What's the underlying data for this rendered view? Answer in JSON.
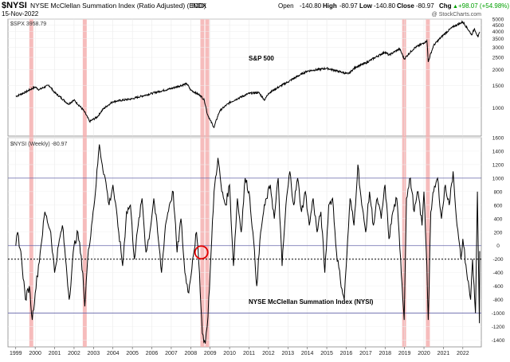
{
  "header": {
    "symbol": "$NYSI",
    "title": "NYSE McClellan Summation Index (Ratio Adjusted) (EOD)",
    "exchange": "INDX",
    "date": "15-Nov-2022",
    "ohlc": [
      {
        "label": "Open",
        "value": "-140.80"
      },
      {
        "label": "High",
        "value": "-80.97"
      },
      {
        "label": "Low",
        "value": "-140.80"
      },
      {
        "label": "Close",
        "value": "-80.97"
      },
      {
        "label": "Chg",
        "value": "+98.07 (+54.98%)"
      }
    ],
    "chg_arrow": "▲",
    "watermark": "@ StockCharts.com"
  },
  "colors": {
    "accent_up": "#00a000",
    "highlight_band": "#f4b0b0",
    "circle": "#e00000",
    "ref_line": "#6666aa",
    "grid": "#bbbbbb"
  },
  "chart_data": [
    {
      "type": "line",
      "legend_label": "$SPX 3958.79",
      "panel_label": "S&P 500",
      "scale": "log",
      "ylim": [
        600,
        5000
      ],
      "yticks": [
        1000,
        1500,
        2000,
        2500,
        3000,
        3500,
        4000,
        4500,
        5000
      ],
      "series": [
        {
          "x": [
            1999.0,
            1999.5,
            2000.0,
            2000.2,
            2000.7,
            2001.0,
            2001.7,
            2002.0,
            2002.5,
            2002.8,
            2003.2,
            2003.5,
            2004.0,
            2005.0,
            2006.0,
            2007.0,
            2007.8,
            2008.0,
            2008.5,
            2008.7,
            2008.85,
            2009.0,
            2009.2,
            2009.5,
            2010.0,
            2011.0,
            2011.5,
            2011.8,
            2012.0,
            2013.0,
            2014.0,
            2015.0,
            2015.6,
            2016.1,
            2016.5,
            2017.0,
            2018.0,
            2018.2,
            2018.75,
            2018.98,
            2019.5,
            2020.0,
            2020.15,
            2020.22,
            2020.5,
            2021.0,
            2021.5,
            2022.0,
            2022.45,
            2022.6,
            2022.78,
            2022.87
          ],
          "values": [
            1230,
            1330,
            1460,
            1390,
            1510,
            1320,
            1070,
            1150,
            950,
            780,
            850,
            980,
            1120,
            1180,
            1300,
            1420,
            1550,
            1380,
            1250,
            1150,
            900,
            800,
            700,
            950,
            1100,
            1300,
            1320,
            1150,
            1300,
            1600,
            1950,
            2050,
            1940,
            1850,
            2100,
            2250,
            2750,
            2600,
            2920,
            2420,
            2950,
            3250,
            3390,
            2300,
            3100,
            3750,
            4350,
            4750,
            3750,
            4200,
            3600,
            3958.79
          ]
        }
      ]
    },
    {
      "type": "line",
      "legend_label": "$NYSI (Weekly) -80.97",
      "panel_label": "NYSE McClellan Summation Index (NYSI)",
      "ylim": [
        -1500,
        1600
      ],
      "yticks": [
        -1400,
        -1200,
        -1000,
        -800,
        -600,
        -400,
        -200,
        0,
        200,
        400,
        600,
        800,
        1000,
        1200,
        1400,
        1600
      ],
      "reference_lines": [
        1000,
        0,
        -1000
      ],
      "dotted_line": -200,
      "highlight_x": [
        1999.8,
        2002.55,
        2008.6,
        2008.85,
        2018.98,
        2020.2
      ],
      "circle_x": 2008.55,
      "circle_y": -100,
      "series": [
        {
          "x": [
            1999.0,
            1999.1,
            1999.3,
            1999.5,
            1999.7,
            1999.85,
            2000.0,
            2000.3,
            2000.5,
            2000.8,
            2001.0,
            2001.2,
            2001.4,
            2001.6,
            2001.75,
            2002.0,
            2002.2,
            2002.45,
            2002.55,
            2002.7,
            2002.9,
            2003.1,
            2003.3,
            2003.45,
            2003.6,
            2003.8,
            2004.0,
            2004.3,
            2004.5,
            2004.7,
            2004.9,
            2005.1,
            2005.3,
            2005.5,
            2005.7,
            2005.9,
            2006.1,
            2006.3,
            2006.5,
            2006.7,
            2006.9,
            2007.1,
            2007.3,
            2007.5,
            2007.7,
            2007.9,
            2008.1,
            2008.3,
            2008.45,
            2008.6,
            2008.75,
            2008.85,
            2009.0,
            2009.2,
            2009.4,
            2009.6,
            2009.8,
            2010.0,
            2010.2,
            2010.4,
            2010.6,
            2010.8,
            2011.0,
            2011.2,
            2011.4,
            2011.6,
            2011.75,
            2011.9,
            2012.1,
            2012.3,
            2012.5,
            2012.7,
            2012.9,
            2013.1,
            2013.3,
            2013.5,
            2013.7,
            2013.9,
            2014.1,
            2014.3,
            2014.5,
            2014.7,
            2014.9,
            2015.1,
            2015.3,
            2015.5,
            2015.7,
            2015.9,
            2016.0,
            2016.2,
            2016.4,
            2016.6,
            2016.8,
            2017.0,
            2017.2,
            2017.4,
            2017.6,
            2017.8,
            2018.0,
            2018.2,
            2018.4,
            2018.6,
            2018.8,
            2018.98,
            2019.1,
            2019.3,
            2019.5,
            2019.7,
            2019.9,
            2020.0,
            2020.15,
            2020.22,
            2020.35,
            2020.5,
            2020.7,
            2020.9,
            2021.1,
            2021.3,
            2021.5,
            2021.7,
            2021.9,
            2022.0,
            2022.2,
            2022.4,
            2022.5,
            2022.65,
            2022.75,
            2022.85,
            2022.87
          ],
          "values": [
            0,
            200,
            -200,
            -800,
            -600,
            -1100,
            -700,
            0,
            500,
            200,
            -400,
            0,
            300,
            -300,
            -800,
            0,
            200,
            -400,
            -900,
            -200,
            300,
            800,
            1500,
            1200,
            1000,
            600,
            900,
            200,
            -300,
            500,
            600,
            -200,
            300,
            700,
            -100,
            200,
            700,
            200,
            -400,
            300,
            600,
            800,
            -100,
            400,
            -400,
            -700,
            -200,
            200,
            -400,
            -1300,
            -1450,
            -1200,
            -400,
            800,
            1300,
            800,
            600,
            900,
            -300,
            700,
            200,
            1000,
            800,
            200,
            -600,
            200,
            500,
            700,
            900,
            400,
            1000,
            -300,
            600,
            1100,
            600,
            1000,
            500,
            800,
            300,
            700,
            200,
            500,
            -400,
            600,
            700,
            -100,
            -500,
            -800,
            -300,
            700,
            300,
            1200,
            600,
            200,
            800,
            300,
            700,
            400,
            900,
            100,
            500,
            700,
            -200,
            -1100,
            700,
            1000,
            500,
            800,
            300,
            800,
            -300,
            -1100,
            500,
            800,
            1000,
            400,
            900,
            600,
            1100,
            300,
            -200,
            100,
            -400,
            -800,
            -200,
            -1000,
            800,
            -1150,
            -80.97
          ]
        }
      ]
    }
  ],
  "x_axis": {
    "years": [
      "1999",
      "2000",
      "2001",
      "2002",
      "2003",
      "2004",
      "2005",
      "2006",
      "2007",
      "2008",
      "2009",
      "2010",
      "2011",
      "2012",
      "2013",
      "2014",
      "2015",
      "2016",
      "2017",
      "2018",
      "2019",
      "2020",
      "2021",
      "2022"
    ]
  }
}
